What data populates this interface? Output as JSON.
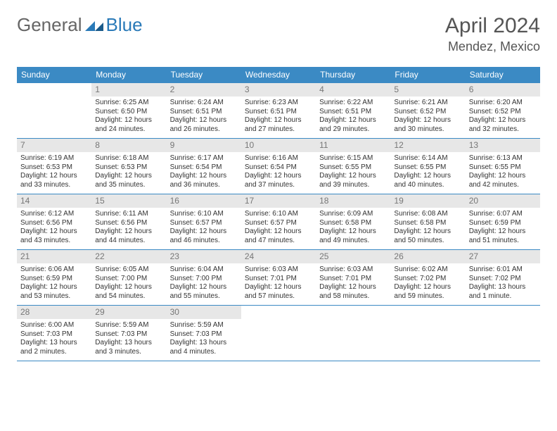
{
  "logo": {
    "part1": "General",
    "part2": "Blue"
  },
  "title": "April 2024",
  "location": "Mendez, Mexico",
  "colors": {
    "header_bg": "#3b8ac4",
    "header_text": "#ffffff",
    "daynum_bg": "#e7e7e7",
    "daynum_text": "#777777",
    "body_text": "#333333",
    "title_text": "#555555",
    "rule": "#3b8ac4"
  },
  "day_names": [
    "Sunday",
    "Monday",
    "Tuesday",
    "Wednesday",
    "Thursday",
    "Friday",
    "Saturday"
  ],
  "weeks": [
    [
      {
        "n": "",
        "sr": "",
        "ss": "",
        "dl": ""
      },
      {
        "n": "1",
        "sr": "Sunrise: 6:25 AM",
        "ss": "Sunset: 6:50 PM",
        "dl": "Daylight: 12 hours and 24 minutes."
      },
      {
        "n": "2",
        "sr": "Sunrise: 6:24 AM",
        "ss": "Sunset: 6:51 PM",
        "dl": "Daylight: 12 hours and 26 minutes."
      },
      {
        "n": "3",
        "sr": "Sunrise: 6:23 AM",
        "ss": "Sunset: 6:51 PM",
        "dl": "Daylight: 12 hours and 27 minutes."
      },
      {
        "n": "4",
        "sr": "Sunrise: 6:22 AM",
        "ss": "Sunset: 6:51 PM",
        "dl": "Daylight: 12 hours and 29 minutes."
      },
      {
        "n": "5",
        "sr": "Sunrise: 6:21 AM",
        "ss": "Sunset: 6:52 PM",
        "dl": "Daylight: 12 hours and 30 minutes."
      },
      {
        "n": "6",
        "sr": "Sunrise: 6:20 AM",
        "ss": "Sunset: 6:52 PM",
        "dl": "Daylight: 12 hours and 32 minutes."
      }
    ],
    [
      {
        "n": "7",
        "sr": "Sunrise: 6:19 AM",
        "ss": "Sunset: 6:53 PM",
        "dl": "Daylight: 12 hours and 33 minutes."
      },
      {
        "n": "8",
        "sr": "Sunrise: 6:18 AM",
        "ss": "Sunset: 6:53 PM",
        "dl": "Daylight: 12 hours and 35 minutes."
      },
      {
        "n": "9",
        "sr": "Sunrise: 6:17 AM",
        "ss": "Sunset: 6:54 PM",
        "dl": "Daylight: 12 hours and 36 minutes."
      },
      {
        "n": "10",
        "sr": "Sunrise: 6:16 AM",
        "ss": "Sunset: 6:54 PM",
        "dl": "Daylight: 12 hours and 37 minutes."
      },
      {
        "n": "11",
        "sr": "Sunrise: 6:15 AM",
        "ss": "Sunset: 6:55 PM",
        "dl": "Daylight: 12 hours and 39 minutes."
      },
      {
        "n": "12",
        "sr": "Sunrise: 6:14 AM",
        "ss": "Sunset: 6:55 PM",
        "dl": "Daylight: 12 hours and 40 minutes."
      },
      {
        "n": "13",
        "sr": "Sunrise: 6:13 AM",
        "ss": "Sunset: 6:55 PM",
        "dl": "Daylight: 12 hours and 42 minutes."
      }
    ],
    [
      {
        "n": "14",
        "sr": "Sunrise: 6:12 AM",
        "ss": "Sunset: 6:56 PM",
        "dl": "Daylight: 12 hours and 43 minutes."
      },
      {
        "n": "15",
        "sr": "Sunrise: 6:11 AM",
        "ss": "Sunset: 6:56 PM",
        "dl": "Daylight: 12 hours and 44 minutes."
      },
      {
        "n": "16",
        "sr": "Sunrise: 6:10 AM",
        "ss": "Sunset: 6:57 PM",
        "dl": "Daylight: 12 hours and 46 minutes."
      },
      {
        "n": "17",
        "sr": "Sunrise: 6:10 AM",
        "ss": "Sunset: 6:57 PM",
        "dl": "Daylight: 12 hours and 47 minutes."
      },
      {
        "n": "18",
        "sr": "Sunrise: 6:09 AM",
        "ss": "Sunset: 6:58 PM",
        "dl": "Daylight: 12 hours and 49 minutes."
      },
      {
        "n": "19",
        "sr": "Sunrise: 6:08 AM",
        "ss": "Sunset: 6:58 PM",
        "dl": "Daylight: 12 hours and 50 minutes."
      },
      {
        "n": "20",
        "sr": "Sunrise: 6:07 AM",
        "ss": "Sunset: 6:59 PM",
        "dl": "Daylight: 12 hours and 51 minutes."
      }
    ],
    [
      {
        "n": "21",
        "sr": "Sunrise: 6:06 AM",
        "ss": "Sunset: 6:59 PM",
        "dl": "Daylight: 12 hours and 53 minutes."
      },
      {
        "n": "22",
        "sr": "Sunrise: 6:05 AM",
        "ss": "Sunset: 7:00 PM",
        "dl": "Daylight: 12 hours and 54 minutes."
      },
      {
        "n": "23",
        "sr": "Sunrise: 6:04 AM",
        "ss": "Sunset: 7:00 PM",
        "dl": "Daylight: 12 hours and 55 minutes."
      },
      {
        "n": "24",
        "sr": "Sunrise: 6:03 AM",
        "ss": "Sunset: 7:01 PM",
        "dl": "Daylight: 12 hours and 57 minutes."
      },
      {
        "n": "25",
        "sr": "Sunrise: 6:03 AM",
        "ss": "Sunset: 7:01 PM",
        "dl": "Daylight: 12 hours and 58 minutes."
      },
      {
        "n": "26",
        "sr": "Sunrise: 6:02 AM",
        "ss": "Sunset: 7:02 PM",
        "dl": "Daylight: 12 hours and 59 minutes."
      },
      {
        "n": "27",
        "sr": "Sunrise: 6:01 AM",
        "ss": "Sunset: 7:02 PM",
        "dl": "Daylight: 13 hours and 1 minute."
      }
    ],
    [
      {
        "n": "28",
        "sr": "Sunrise: 6:00 AM",
        "ss": "Sunset: 7:03 PM",
        "dl": "Daylight: 13 hours and 2 minutes."
      },
      {
        "n": "29",
        "sr": "Sunrise: 5:59 AM",
        "ss": "Sunset: 7:03 PM",
        "dl": "Daylight: 13 hours and 3 minutes."
      },
      {
        "n": "30",
        "sr": "Sunrise: 5:59 AM",
        "ss": "Sunset: 7:03 PM",
        "dl": "Daylight: 13 hours and 4 minutes."
      },
      {
        "n": "",
        "sr": "",
        "ss": "",
        "dl": ""
      },
      {
        "n": "",
        "sr": "",
        "ss": "",
        "dl": ""
      },
      {
        "n": "",
        "sr": "",
        "ss": "",
        "dl": ""
      },
      {
        "n": "",
        "sr": "",
        "ss": "",
        "dl": ""
      }
    ]
  ]
}
